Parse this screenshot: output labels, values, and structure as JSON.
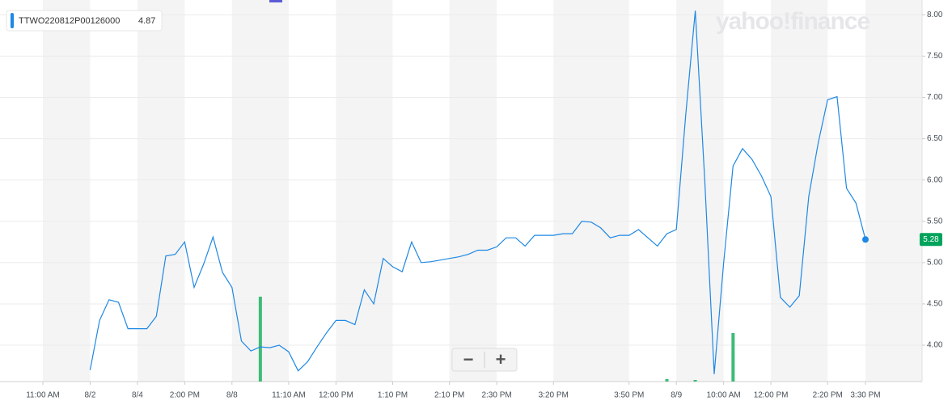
{
  "chart_data": {
    "type": "line",
    "watermark": "yahoo!finance",
    "legend_value": 4.87,
    "zoom_buttons": [
      "−",
      "+"
    ],
    "categories": [
      "11:00 AM",
      null,
      null,
      null,
      null,
      "8/2",
      null,
      null,
      null,
      null,
      "8/4",
      null,
      null,
      null,
      null,
      "2:00 PM",
      null,
      null,
      null,
      null,
      "8/8",
      null,
      null,
      null,
      null,
      null,
      "11:10 AM",
      null,
      null,
      null,
      null,
      "12:00 PM",
      null,
      null,
      null,
      null,
      null,
      "1:10 PM",
      null,
      null,
      null,
      null,
      null,
      "2:10 PM",
      null,
      null,
      null,
      null,
      "2:30 PM",
      null,
      null,
      null,
      null,
      null,
      "3:20 PM",
      null,
      null,
      null,
      null,
      null,
      null,
      null,
      "3:50 PM",
      null,
      null,
      null,
      null,
      "8/9",
      null,
      null,
      null,
      null,
      "10:00 AM",
      null,
      null,
      null,
      null,
      "12:00 PM",
      null,
      null,
      null,
      null,
      null,
      "2:20 PM",
      null,
      null,
      null,
      "3:30 PM"
    ],
    "series": [
      {
        "name": "TTWO220812P00126000",
        "color": "#1e88e5",
        "values": [
          null,
          null,
          null,
          null,
          null,
          3.7,
          4.3,
          4.55,
          4.52,
          4.2,
          4.2,
          4.2,
          4.35,
          5.08,
          5.1,
          5.25,
          4.7,
          4.98,
          5.31,
          4.88,
          4.7,
          4.05,
          3.93,
          3.98,
          3.97,
          4.0,
          3.92,
          3.69,
          3.8,
          3.98,
          4.15,
          4.3,
          4.3,
          4.25,
          4.67,
          4.5,
          5.05,
          4.95,
          4.89,
          5.25,
          5.0,
          5.01,
          5.03,
          5.05,
          5.07,
          5.1,
          5.15,
          5.15,
          5.19,
          5.3,
          5.3,
          5.2,
          5.33,
          5.33,
          5.33,
          5.35,
          5.35,
          5.5,
          5.49,
          5.42,
          5.3,
          5.33,
          5.33,
          5.4,
          5.3,
          5.2,
          5.35,
          5.4,
          6.8,
          8.05,
          6.0,
          3.65,
          5.0,
          6.17,
          6.38,
          6.25,
          6.05,
          5.8,
          4.58,
          4.46,
          4.6,
          5.8,
          6.45,
          6.97,
          7.01,
          5.9,
          5.72,
          5.28
        ]
      }
    ],
    "volume": {
      "color": "#3dbb77",
      "values": [
        null,
        null,
        null,
        null,
        null,
        null,
        null,
        null,
        null,
        null,
        null,
        null,
        null,
        null,
        null,
        null,
        null,
        null,
        null,
        null,
        null,
        null,
        null,
        105,
        null,
        null,
        null,
        null,
        null,
        null,
        null,
        null,
        null,
        null,
        null,
        null,
        null,
        null,
        null,
        null,
        null,
        null,
        null,
        null,
        null,
        null,
        null,
        null,
        null,
        null,
        null,
        null,
        null,
        null,
        null,
        null,
        null,
        null,
        null,
        null,
        null,
        null,
        null,
        null,
        null,
        null,
        3,
        null,
        null,
        2,
        null,
        null,
        null,
        60,
        null,
        null,
        null,
        null,
        null,
        null,
        null,
        null,
        null,
        null,
        null,
        null,
        null,
        null
      ]
    },
    "ylim": [
      3.56,
      8.13
    ],
    "yticks": [
      {
        "value": 4,
        "label": "4.00"
      },
      {
        "value": 4.5,
        "label": "4.50"
      },
      {
        "value": 5,
        "label": "5.00"
      },
      {
        "value": 5.5,
        "label": "5.50"
      },
      {
        "value": 6,
        "label": "6.00"
      },
      {
        "value": 6.5,
        "label": "6.50"
      },
      {
        "value": 7,
        "label": "7.00"
      },
      {
        "value": 7.5,
        "label": "7.50"
      },
      {
        "value": 8,
        "label": "8.00"
      }
    ],
    "grid": true
  }
}
